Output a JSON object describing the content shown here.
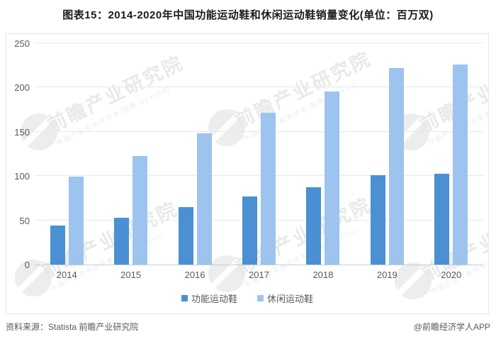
{
  "title": "图表15：2014-2020年中国功能运动鞋和休闲运动鞋销量变化(单位：百万双)",
  "chart_data": {
    "type": "bar",
    "categories": [
      "2014",
      "2015",
      "2016",
      "2017",
      "2018",
      "2019",
      "2020"
    ],
    "series": [
      {
        "name": "功能运动鞋",
        "color": "#4a90d2",
        "values": [
          44,
          53,
          65,
          77,
          88,
          101,
          103
        ]
      },
      {
        "name": "休闲运动鞋",
        "color": "#9dc3ef",
        "values": [
          100,
          123,
          149,
          172,
          196,
          223,
          227
        ]
      }
    ],
    "unit": "百万双",
    "ylim": [
      0,
      250
    ],
    "y_ticks": [
      0,
      50,
      100,
      150,
      200,
      250
    ],
    "grid": true,
    "legend_position": "bottom",
    "gridline_color": "#e8e8e8",
    "axis_line_color": "#c9cdd4"
  },
  "watermark": {
    "text": "前瞻产业研究院",
    "subtext": "中国产业咨询领导者(股票:839599)"
  },
  "footer": {
    "source": "资料来源：Statista 前瞻产业研究院",
    "credit": "@前瞻经济学人APP"
  }
}
